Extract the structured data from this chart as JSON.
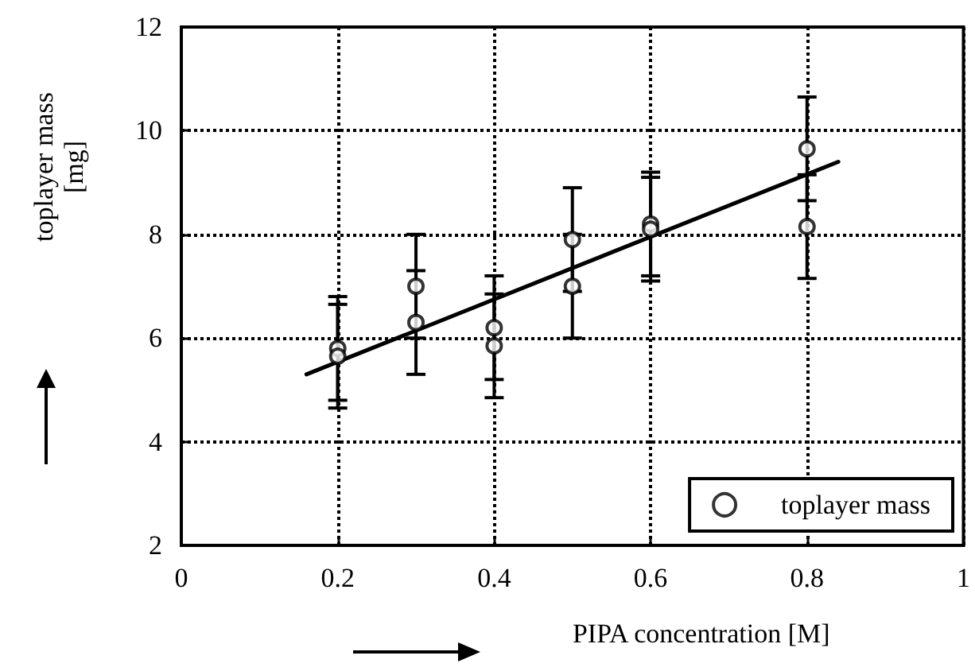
{
  "chart_data": {
    "type": "scatter",
    "xlabel": "PIPA concentration [M]",
    "ylabel": "toplayer mass\n[mg]",
    "xlim": [
      0,
      1
    ],
    "xticks": [
      0,
      0.2,
      0.4,
      0.6,
      0.8,
      1
    ],
    "ylim": [
      2,
      12
    ],
    "yticks": [
      2,
      4,
      6,
      8,
      10,
      12
    ],
    "grid": true,
    "legend": "bottom right",
    "marker": "circle",
    "series": [
      {
        "name": "toplayer mass",
        "color": "#000000",
        "x": [
          0.2,
          0.2,
          0.3,
          0.3,
          0.4,
          0.4,
          0.5,
          0.5,
          0.6,
          0.6,
          0.8,
          0.8
        ],
        "values": [
          5.8,
          5.65,
          7.0,
          6.3,
          6.2,
          5.85,
          7.9,
          7.0,
          8.2,
          8.1,
          9.65,
          8.15
        ],
        "errors": [
          1,
          1,
          1,
          1,
          1,
          1,
          1,
          1,
          1,
          1,
          1,
          1
        ]
      },
      {
        "type": "line",
        "color": "#000000",
        "marker": "none",
        "line_style": "solid",
        "x": [
          0.16,
          0.84
        ],
        "values": [
          5.3,
          9.4
        ]
      }
    ]
  }
}
